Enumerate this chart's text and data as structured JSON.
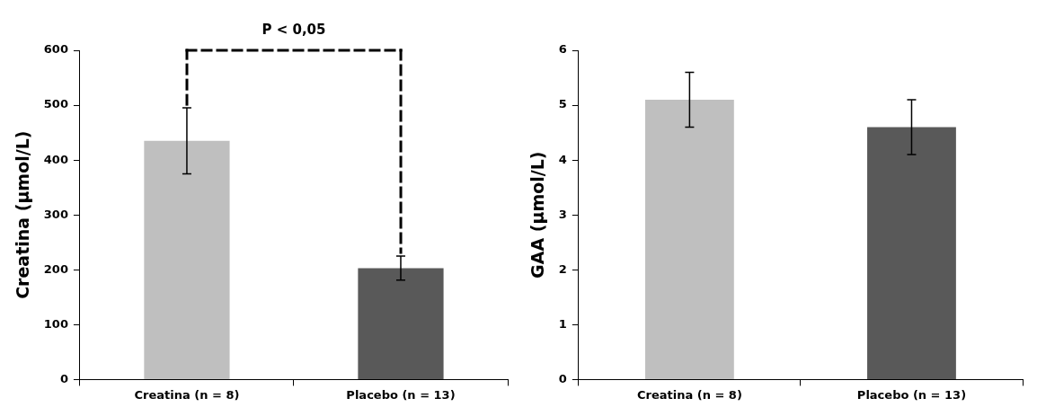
{
  "chart_data": [
    {
      "type": "bar",
      "categories": [
        "Creatina (n = 8)",
        "Placebo (n = 13)"
      ],
      "values": [
        435,
        203
      ],
      "colors": [
        "#bfbfbf",
        "#595959"
      ],
      "errors": [
        60,
        22
      ],
      "ylabel": "Creatina (µmol/L)",
      "ylim": [
        0,
        600
      ],
      "yticks": [
        0,
        100,
        200,
        300,
        400,
        500,
        600
      ],
      "grid": false,
      "legend": false,
      "annotations": [
        "P < 0,05"
      ]
    },
    {
      "type": "bar",
      "categories": [
        "Creatina (n = 8)",
        "Placebo (n = 13)"
      ],
      "values": [
        5.1,
        4.6
      ],
      "colors": [
        "#bfbfbf",
        "#595959"
      ],
      "errors": [
        0.5,
        0.5
      ],
      "ylabel": "GAA (µmol/L)",
      "ylim": [
        0,
        6
      ],
      "yticks": [
        0,
        1,
        2,
        3,
        4,
        5,
        6
      ],
      "grid": false,
      "legend": false
    }
  ]
}
